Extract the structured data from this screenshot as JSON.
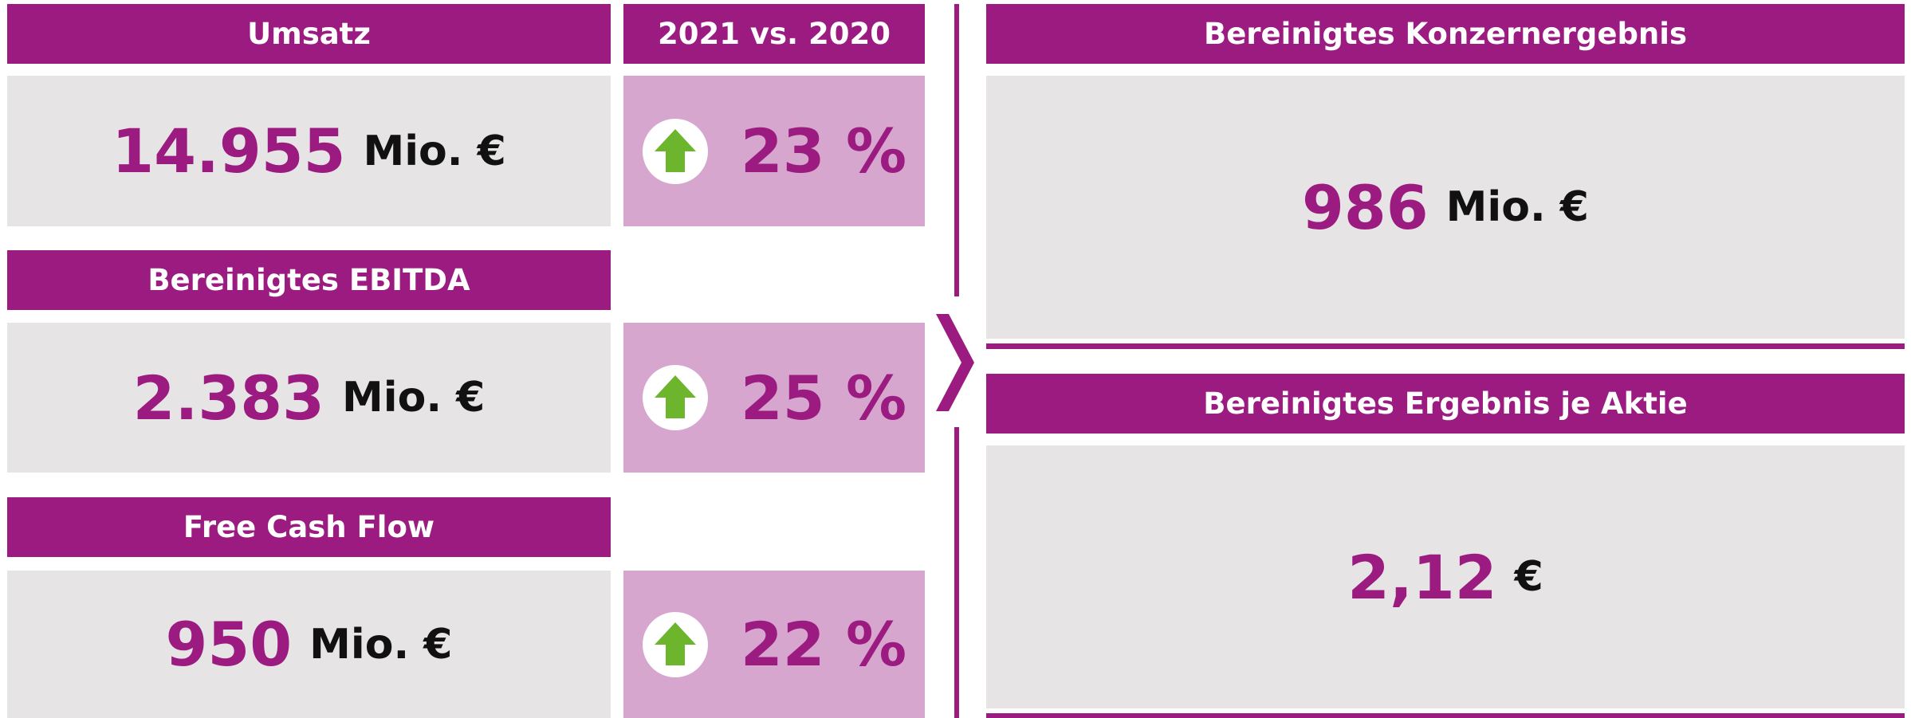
{
  "comparison_header": "2021 vs. 2020",
  "metrics": [
    {
      "label": "Umsatz",
      "value": "14.955",
      "unit": "Mio. €",
      "change": "23 %"
    },
    {
      "label": "Bereinigtes EBITDA",
      "value": "2.383",
      "unit": "Mio. €",
      "change": "25 %"
    },
    {
      "label": "Free Cash Flow",
      "value": "950",
      "unit": "Mio. €",
      "change": "22 %"
    }
  ],
  "results": [
    {
      "label": "Bereinigtes Konzernergebnis",
      "value": "986",
      "unit": "Mio. €"
    },
    {
      "label": "Bereinigtes Ergebnis je Aktie",
      "value": "2,12",
      "unit": "€"
    }
  ]
}
